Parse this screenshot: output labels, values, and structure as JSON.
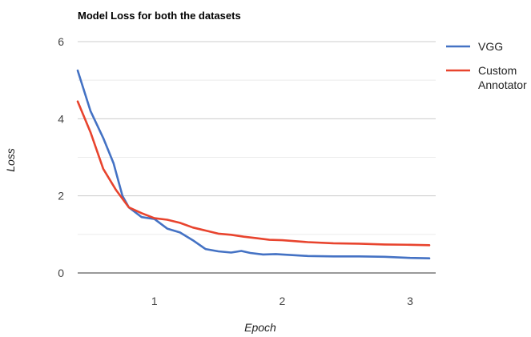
{
  "chart_data": {
    "type": "line",
    "title": "Model Loss for both the datasets",
    "xlabel": "Epoch",
    "ylabel": "Loss",
    "xlim": [
      0.4,
      3.2
    ],
    "ylim": [
      0,
      6
    ],
    "xticks": [
      1,
      2,
      3
    ],
    "yticks": [
      0,
      2,
      4,
      6
    ],
    "grid": true,
    "legend_position": "right",
    "series": [
      {
        "name": "VGG",
        "color": "#4472c4",
        "points": [
          [
            0.4,
            5.25
          ],
          [
            0.5,
            4.2
          ],
          [
            0.6,
            3.5
          ],
          [
            0.68,
            2.85
          ],
          [
            0.75,
            2.0
          ],
          [
            0.8,
            1.7
          ],
          [
            0.9,
            1.45
          ],
          [
            1.0,
            1.4
          ],
          [
            1.1,
            1.15
          ],
          [
            1.2,
            1.05
          ],
          [
            1.3,
            0.85
          ],
          [
            1.4,
            0.62
          ],
          [
            1.5,
            0.56
          ],
          [
            1.6,
            0.53
          ],
          [
            1.68,
            0.57
          ],
          [
            1.75,
            0.52
          ],
          [
            1.85,
            0.48
          ],
          [
            1.95,
            0.49
          ],
          [
            2.0,
            0.48
          ],
          [
            2.2,
            0.44
          ],
          [
            2.4,
            0.43
          ],
          [
            2.6,
            0.43
          ],
          [
            2.8,
            0.42
          ],
          [
            3.0,
            0.39
          ],
          [
            3.15,
            0.38
          ]
        ]
      },
      {
        "name": "Custom Annotator",
        "color": "#e8442e",
        "points": [
          [
            0.4,
            4.45
          ],
          [
            0.5,
            3.65
          ],
          [
            0.6,
            2.7
          ],
          [
            0.7,
            2.15
          ],
          [
            0.8,
            1.7
          ],
          [
            0.9,
            1.55
          ],
          [
            1.0,
            1.42
          ],
          [
            1.1,
            1.38
          ],
          [
            1.2,
            1.3
          ],
          [
            1.3,
            1.18
          ],
          [
            1.4,
            1.1
          ],
          [
            1.5,
            1.02
          ],
          [
            1.6,
            0.99
          ],
          [
            1.7,
            0.94
          ],
          [
            1.8,
            0.9
          ],
          [
            1.9,
            0.86
          ],
          [
            2.0,
            0.85
          ],
          [
            2.2,
            0.8
          ],
          [
            2.4,
            0.77
          ],
          [
            2.6,
            0.76
          ],
          [
            2.8,
            0.74
          ],
          [
            3.0,
            0.73
          ],
          [
            3.15,
            0.72
          ]
        ]
      }
    ]
  }
}
